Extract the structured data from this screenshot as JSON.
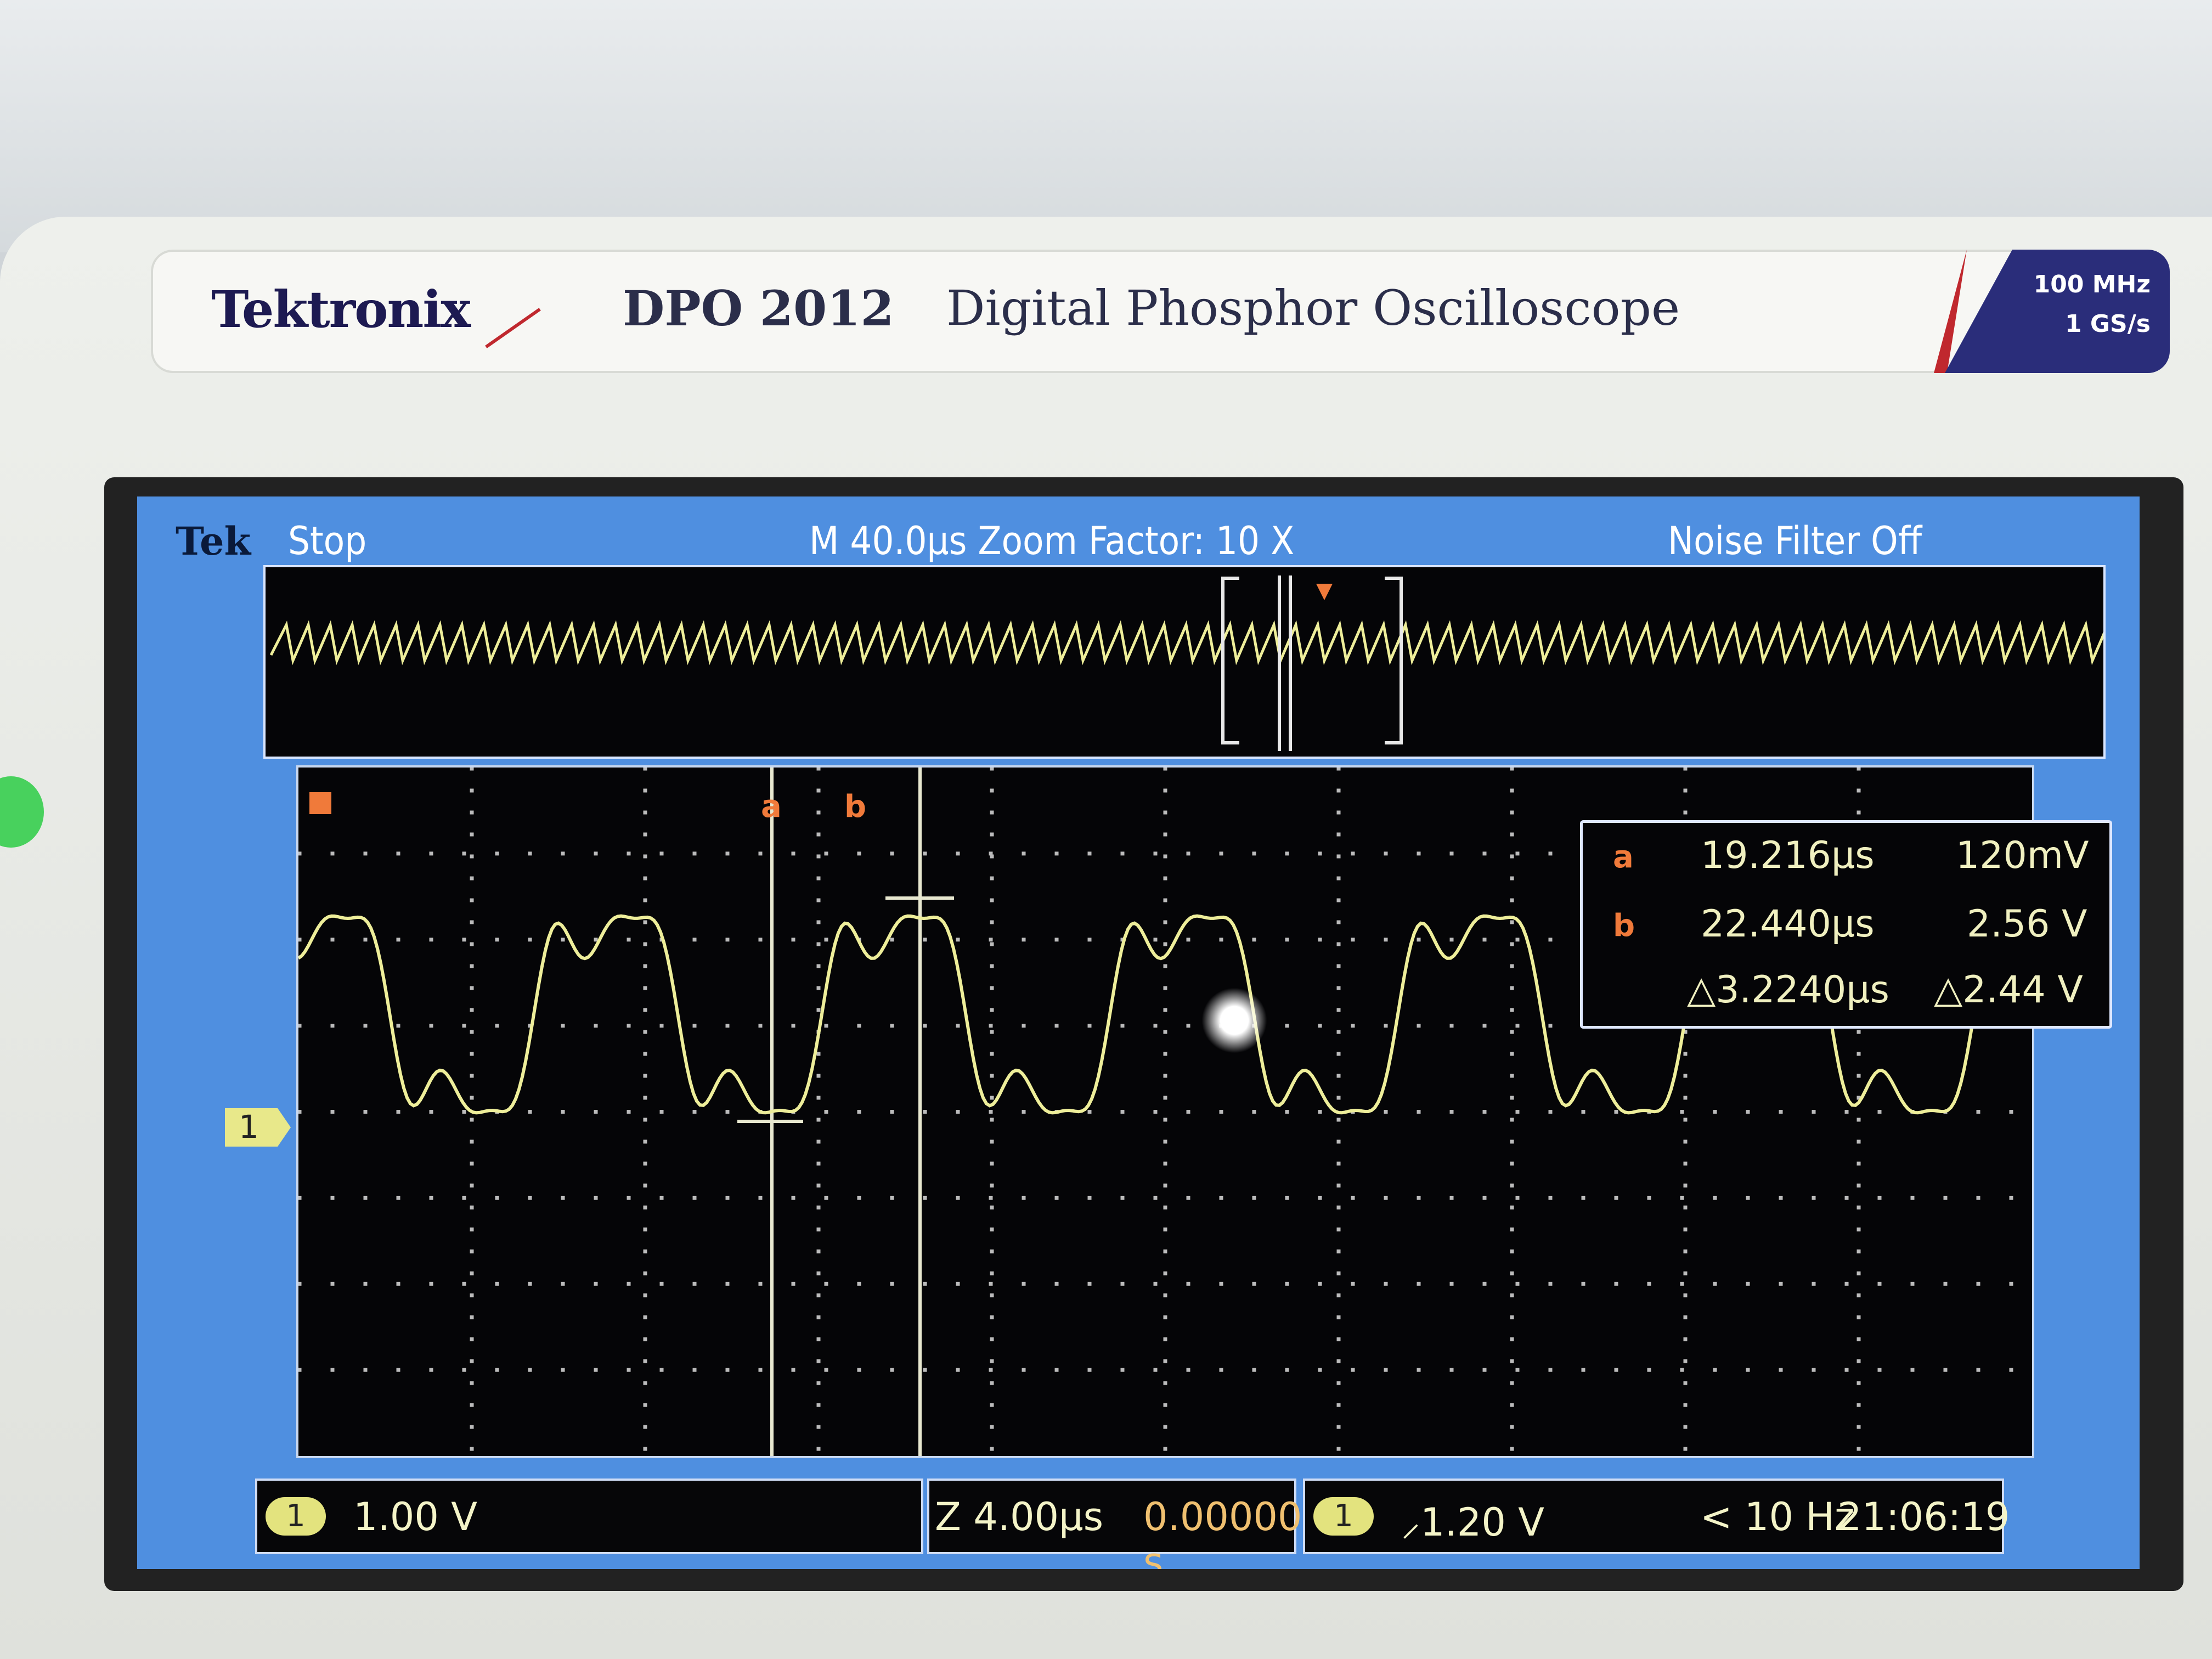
{
  "device": {
    "brand": "Tektronix",
    "model": "DPO 2012",
    "description": "Digital Phosphor Oscilloscope",
    "spec_bandwidth": "100 MHz",
    "spec_sample_rate": "1 GS/s"
  },
  "screen_header": {
    "logo": "Tek",
    "status": "Stop",
    "timebase": "M 40.0μs  Zoom Factor: 10 X",
    "noise_filter": "Noise Filter Off"
  },
  "cursor_readout": {
    "a_label": "a",
    "a_time": "19.216μs",
    "a_value": "120mV",
    "b_label": "b",
    "b_time": "22.440μs",
    "b_value": "2.56 V",
    "delta_time": "△3.2240μs",
    "delta_value": "△2.44 V"
  },
  "channel_marker": "1",
  "status_bar": {
    "ch1_label": "1",
    "ch1_scale": "1.00 V",
    "zoom_scale": "Z 4.00μs",
    "zoom_position": "0.00000 s",
    "trigger_channel": "1",
    "trigger_level": "⸝1.20 V",
    "trigger_freq": "< 10 Hz",
    "clock": "21:06:19"
  },
  "colors": {
    "screen_border": "#4f8fe0",
    "trace": "#eeee9a",
    "cursor_icon": "#f07a3a",
    "brand_text": "#1d1a52"
  }
}
